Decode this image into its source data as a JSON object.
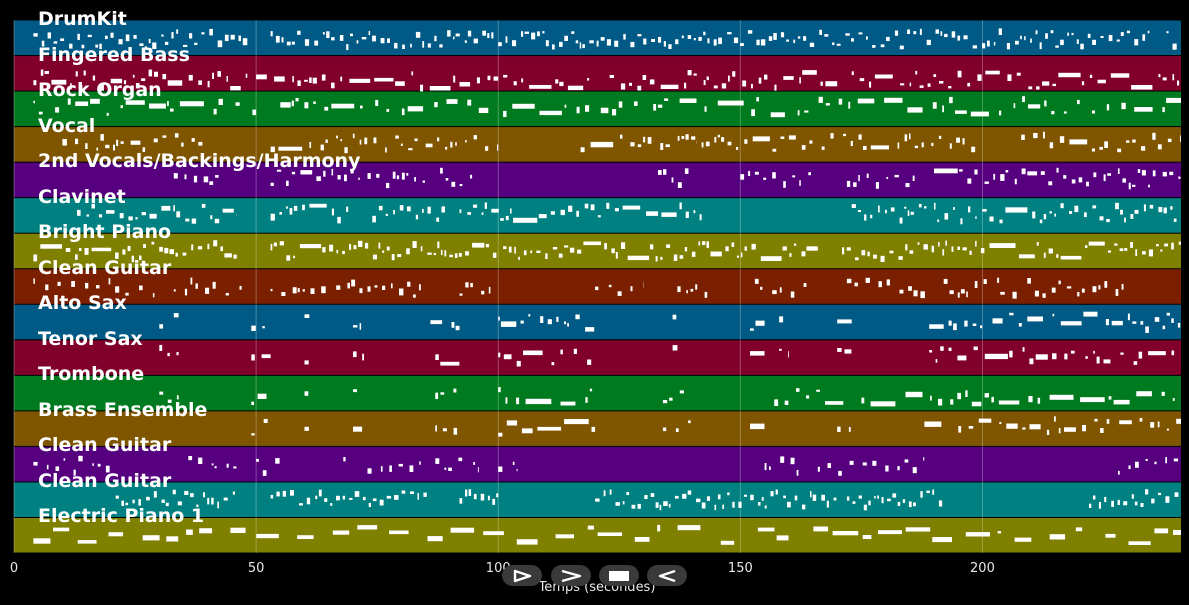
{
  "chart_data": {
    "type": "piano-roll",
    "xlabel": "Temps (secondes)",
    "xlim": [
      0,
      241
    ],
    "x_ticks": [
      0,
      50,
      100,
      150,
      200
    ],
    "grid": true,
    "tracks": [
      {
        "name": "DrumKit",
        "color": "#005a85",
        "segments": [
          [
            4,
            49
          ],
          [
            53,
            99
          ],
          [
            100,
            235
          ],
          [
            238,
            241
          ]
        ],
        "density": 1.4,
        "long": 0.0,
        "row": 0.55
      },
      {
        "name": "Fingered Bass",
        "color": "#80002b",
        "segments": [
          [
            4,
            49
          ],
          [
            50,
            100
          ],
          [
            101,
            120
          ],
          [
            123,
            170
          ],
          [
            173,
            241
          ]
        ],
        "density": 0.9,
        "long": 0.2,
        "row": 0.7
      },
      {
        "name": "Rock Organ",
        "color": "#007a1e",
        "segments": [
          [
            4,
            50
          ],
          [
            55,
            100
          ],
          [
            101,
            130
          ],
          [
            132,
            241
          ]
        ],
        "density": 0.5,
        "long": 0.35,
        "row": 0.45
      },
      {
        "name": "Vocal",
        "color": "#7f5500",
        "segments": [
          [
            10,
            40
          ],
          [
            53,
            100
          ],
          [
            117,
            141
          ],
          [
            142,
            200
          ],
          [
            208,
            241
          ]
        ],
        "density": 0.7,
        "long": 0.1,
        "row": 0.45
      },
      {
        "name": "2nd Vocals/Backings/Harmony",
        "color": "#560080",
        "segments": [
          [
            33,
            43
          ],
          [
            53,
            72
          ],
          [
            73,
            85
          ],
          [
            88,
            95
          ],
          [
            133,
            140
          ],
          [
            150,
            165
          ],
          [
            172,
            186
          ],
          [
            190,
            241
          ]
        ],
        "density": 0.9,
        "long": 0.05,
        "row": 0.45
      },
      {
        "name": "Clavinet",
        "color": "#008080",
        "segments": [
          [
            13,
            46
          ],
          [
            53,
            69
          ],
          [
            74,
            89
          ],
          [
            92,
            142
          ],
          [
            173,
            189
          ],
          [
            190,
            241
          ]
        ],
        "density": 1.2,
        "long": 0.1,
        "row": 0.45
      },
      {
        "name": "Bright Piano",
        "color": "#7f7f00",
        "segments": [
          [
            4,
            46
          ],
          [
            53,
            100
          ],
          [
            101,
            139
          ],
          [
            140,
            166
          ],
          [
            171,
            241
          ]
        ],
        "density": 1.4,
        "long": 0.15,
        "row": 0.5
      },
      {
        "name": "Clean Guitar",
        "color": "#7a2000",
        "segments": [
          [
            4,
            29
          ],
          [
            33,
            47
          ],
          [
            53,
            72
          ],
          [
            73,
            84
          ],
          [
            92,
            99
          ],
          [
            120,
            130
          ],
          [
            137,
            145
          ],
          [
            153,
            165
          ],
          [
            172,
            190
          ],
          [
            192,
            230
          ]
        ],
        "density": 0.6,
        "long": 0.0,
        "row": 0.55
      },
      {
        "name": "Alto Sax",
        "color": "#005a85",
        "segments": [
          [
            30,
            34
          ],
          [
            49,
            53
          ],
          [
            60,
            61
          ],
          [
            70,
            73
          ],
          [
            86,
            92
          ],
          [
            100,
            120
          ],
          [
            136,
            137
          ],
          [
            152,
            155
          ],
          [
            158,
            160
          ],
          [
            170,
            173
          ],
          [
            189,
            192
          ],
          [
            193,
            241
          ]
        ],
        "density": 0.6,
        "long": 0.3,
        "row": 0.5
      },
      {
        "name": "Tenor Sax",
        "color": "#80002b",
        "segments": [
          [
            30,
            34
          ],
          [
            49,
            53
          ],
          [
            60,
            61
          ],
          [
            70,
            73
          ],
          [
            87,
            92
          ],
          [
            100,
            120
          ],
          [
            136,
            137
          ],
          [
            152,
            155
          ],
          [
            158,
            160
          ],
          [
            170,
            173
          ],
          [
            189,
            192
          ],
          [
            193,
            241
          ]
        ],
        "density": 0.6,
        "long": 0.3,
        "row": 0.45
      },
      {
        "name": "Trombone",
        "color": "#007a1e",
        "segments": [
          [
            30,
            34
          ],
          [
            49,
            53
          ],
          [
            60,
            61
          ],
          [
            70,
            73
          ],
          [
            87,
            92
          ],
          [
            100,
            120
          ],
          [
            134,
            140
          ],
          [
            157,
            172
          ],
          [
            175,
            241
          ]
        ],
        "density": 0.6,
        "long": 0.2,
        "row": 0.6
      },
      {
        "name": "Brass Ensemble",
        "color": "#7f5500",
        "segments": [
          [
            49,
            53
          ],
          [
            60,
            61
          ],
          [
            70,
            73
          ],
          [
            87,
            92
          ],
          [
            100,
            120
          ],
          [
            134,
            140
          ],
          [
            152,
            155
          ],
          [
            170,
            173
          ],
          [
            188,
            192
          ],
          [
            195,
            241
          ]
        ],
        "density": 0.6,
        "long": 0.3,
        "row": 0.45
      },
      {
        "name": "Clean Guitar",
        "color": "#560080",
        "segments": [
          [
            4,
            20
          ],
          [
            36,
            46
          ],
          [
            50,
            56
          ],
          [
            68,
            69
          ],
          [
            73,
            84
          ],
          [
            87,
            96
          ],
          [
            100,
            104
          ],
          [
            155,
            162
          ],
          [
            166,
            188
          ],
          [
            228,
            241
          ]
        ],
        "density": 0.6,
        "long": 0.0,
        "row": 0.55
      },
      {
        "name": "Clean Guitar",
        "color": "#008080",
        "segments": [
          [
            21,
            46
          ],
          [
            53,
            86
          ],
          [
            92,
            100
          ],
          [
            120,
            170
          ],
          [
            172,
            190
          ],
          [
            191,
            192
          ],
          [
            222,
            241
          ]
        ],
        "density": 1.4,
        "long": 0.0,
        "row": 0.5
      },
      {
        "name": "Electric Piano 1",
        "color": "#7f7f00",
        "segments": [
          [
            4,
            241
          ]
        ],
        "density": 0.25,
        "long": 0.95,
        "row": 0.5
      }
    ]
  },
  "controls": [
    {
      "name": "play-button",
      "icon": "play-icon"
    },
    {
      "name": "fast-forward-button",
      "icon": "fast-forward-icon"
    },
    {
      "name": "stop-button",
      "icon": "stop-icon"
    },
    {
      "name": "rewind-button",
      "icon": "rewind-icon"
    }
  ]
}
